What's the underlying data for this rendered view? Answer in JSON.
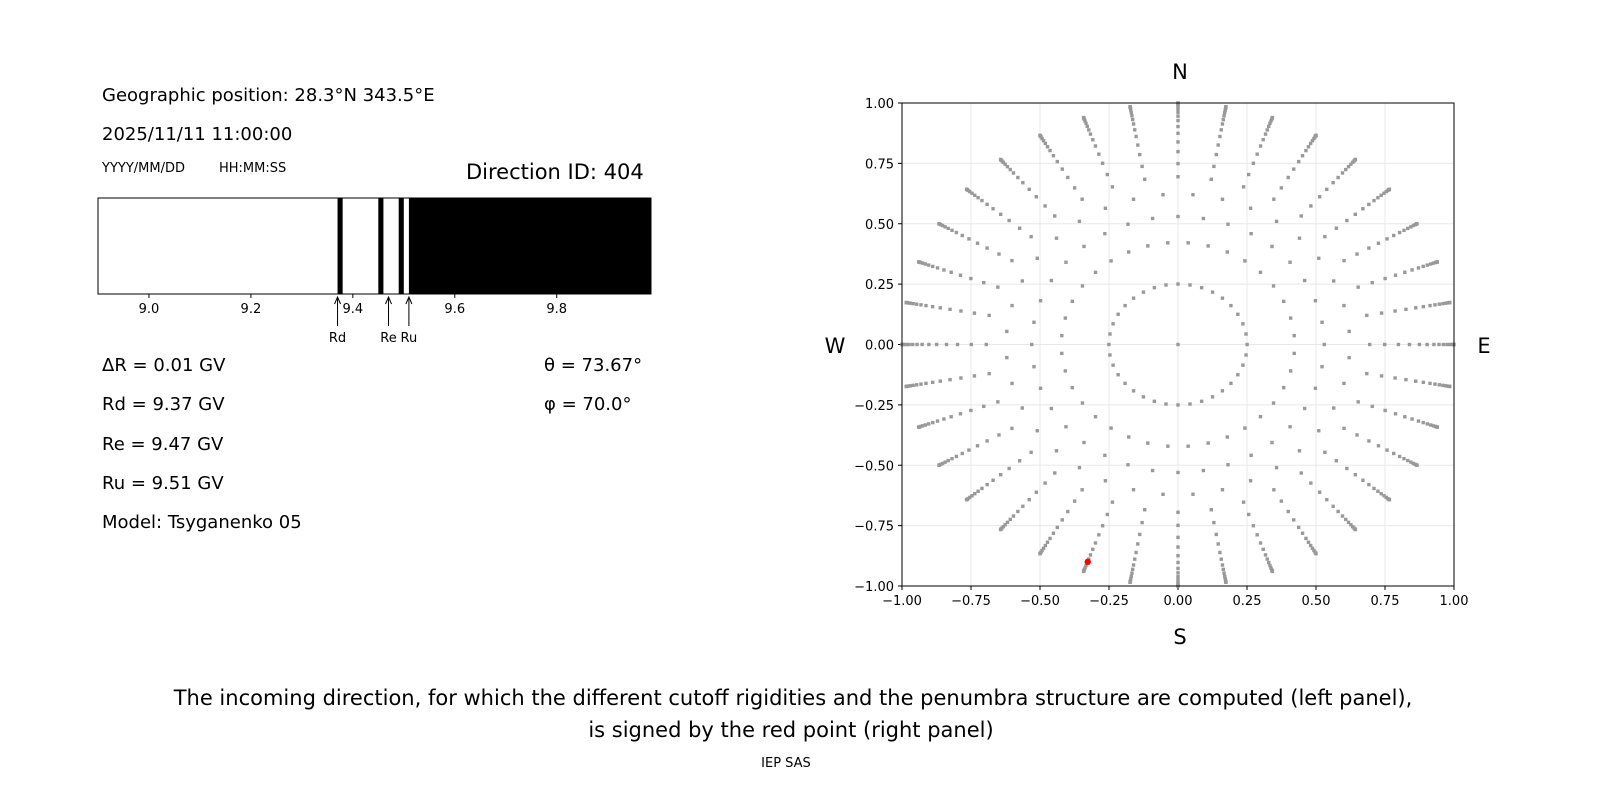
{
  "left_panel": {
    "geo_position": "Geographic position: 28.3°N 343.5°E",
    "datetime": "2025/11/11 11:00:00",
    "date_format": "YYYY/MM/DD",
    "time_format": "HH:MM:SS",
    "direction_id": "Direction ID: 404",
    "delta_r": "ΔR = 0.01 GV",
    "rd": "Rd = 9.37 GV",
    "re": "Re = 9.47 GV",
    "ru": "Ru = 9.51 GV",
    "model": "Model: Tsyganenko 05",
    "theta": "θ = 73.67°",
    "phi": "φ = 70.0°"
  },
  "caption": {
    "line1": "The incoming direction, for which the different cutoff rigidities and the penumbra structure are computed (left panel),",
    "line2": "is signed by the red point (right panel)",
    "credit": "IEP SAS"
  },
  "chart_data": [
    {
      "type": "penumbra-bar",
      "xlim": [
        8.9,
        9.985
      ],
      "xticks": [
        9.0,
        9.2,
        9.4,
        9.6,
        9.8
      ],
      "xtick_labels": [
        "9.0",
        "9.2",
        "9.4",
        "9.6",
        "9.8"
      ],
      "forbidden_bands": [
        [
          9.37,
          9.38
        ],
        [
          9.45,
          9.46
        ],
        [
          9.49,
          9.5
        ],
        [
          9.51,
          9.985
        ]
      ],
      "markers": [
        {
          "label": "Rd",
          "value": 9.37
        },
        {
          "label": "Re",
          "value": 9.47
        },
        {
          "label": "Ru",
          "value": 9.51
        }
      ],
      "colors": {
        "allowed": "#ffffff",
        "forbidden": "#000000"
      }
    },
    {
      "type": "scatter",
      "xlim": [
        -1,
        1
      ],
      "ylim": [
        -1,
        1
      ],
      "xticks": [
        -1.0,
        -0.75,
        -0.5,
        -0.25,
        0.0,
        0.25,
        0.5,
        0.75,
        1.0
      ],
      "yticks": [
        -1.0,
        -0.75,
        -0.5,
        -0.25,
        0.0,
        0.25,
        0.5,
        0.75,
        1.0
      ],
      "tick_labels": [
        "−1.00",
        "−0.75",
        "−0.50",
        "−0.25",
        "0.00",
        "0.25",
        "0.50",
        "0.75",
        "1.00"
      ],
      "grid": true,
      "compass": {
        "north": "N",
        "south": "S",
        "west": "W",
        "east": "E"
      },
      "direction_grid": {
        "zenith_angles_deg": [
          14.5,
          25,
          32,
          38.5,
          44,
          48.5,
          53,
          57,
          61,
          64.5,
          68,
          71,
          74,
          77,
          80,
          83,
          86,
          88,
          90
        ],
        "azimuth_step_deg": 10,
        "center_point": [
          0,
          0
        ]
      },
      "selected_point": [
        -0.327,
        -0.9
      ],
      "colors": {
        "points": "#999999",
        "selected": "#ff0000",
        "grid": "#e8e8e8"
      }
    }
  ]
}
